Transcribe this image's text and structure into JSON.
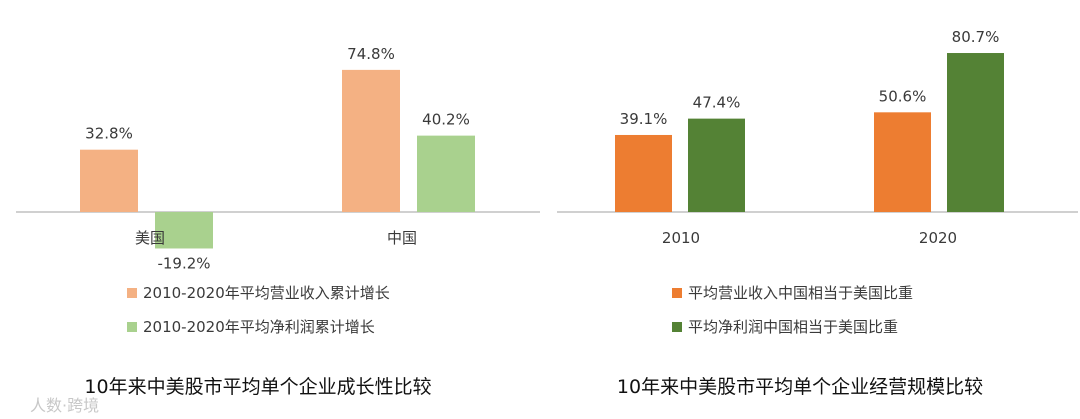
{
  "chart_data": [
    {
      "type": "bar",
      "title": "10年来中美股市平均单个企业成长性比较",
      "categories": [
        "美国",
        "中国"
      ],
      "series": [
        {
          "name": "2010-2020年平均营业收入累计增长",
          "values": [
            32.8,
            74.8
          ],
          "labels": [
            "32.8%",
            "74.8%"
          ],
          "color": "#f4b183"
        },
        {
          "name": "2010-2020年平均净利润累计增长",
          "values": [
            -19.2,
            40.2
          ],
          "labels": [
            "-19.2%",
            "40.2%"
          ],
          "color": "#a9d18e"
        }
      ],
      "ylim": [
        -20,
        80
      ],
      "grid": false,
      "legend": "bottom"
    },
    {
      "type": "bar",
      "title": "10年来中美股市平均单个企业经营规模比较",
      "categories": [
        "2010",
        "2020"
      ],
      "series": [
        {
          "name": "平均营业收入中国相当于美国比重",
          "values": [
            39.1,
            50.6
          ],
          "labels": [
            "39.1%",
            "50.6%"
          ],
          "color": "#ed7d31"
        },
        {
          "name": "平均净利润中国相当于美国比重",
          "values": [
            47.4,
            80.7
          ],
          "labels": [
            "47.4%",
            "80.7%"
          ],
          "color": "#548235"
        }
      ],
      "ylim": [
        0,
        85
      ],
      "grid": false,
      "legend": "bottom"
    }
  ],
  "watermark": "人数·跨境",
  "colors": {
    "axis": "#d0d0d0",
    "text": "#3a3a3a",
    "title": "#111111"
  }
}
